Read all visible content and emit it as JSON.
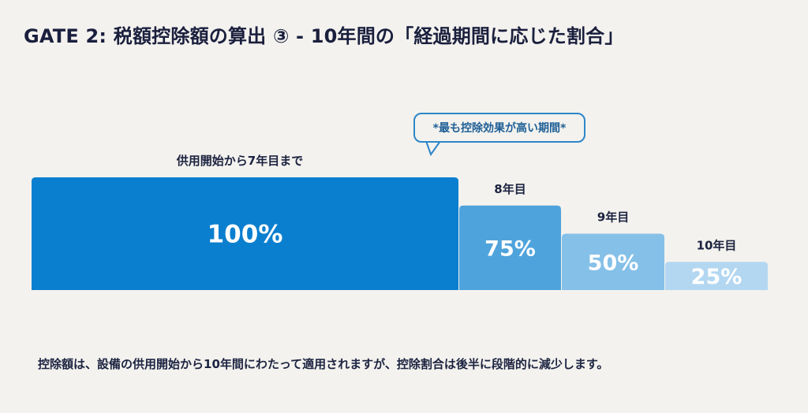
{
  "header": {
    "title": "GATE 2: 税額控除額の算出 ③ - 10年間の「経過期間に応じた割合」"
  },
  "callout": {
    "text": "*最も控除効果が高い期間*"
  },
  "footer": {
    "note": "控除額は、設備の供用開始から10年間にわたって適用されますが、控除割合は後半に段階的に減少します。"
  },
  "chart_data": {
    "type": "bar",
    "categories": [
      "供用開始から7年目まで",
      "8年目",
      "9年目",
      "10年目"
    ],
    "values": [
      100,
      75,
      50,
      25
    ],
    "value_labels": [
      "100%",
      "75%",
      "50%",
      "25%"
    ],
    "colors": [
      "#0b7fcf",
      "#4fa3dc",
      "#85c0e8",
      "#b3d7f1"
    ],
    "ylim": [
      0,
      100
    ],
    "title": "",
    "xlabel": "",
    "ylabel": "",
    "grid": false,
    "legend": "none"
  }
}
